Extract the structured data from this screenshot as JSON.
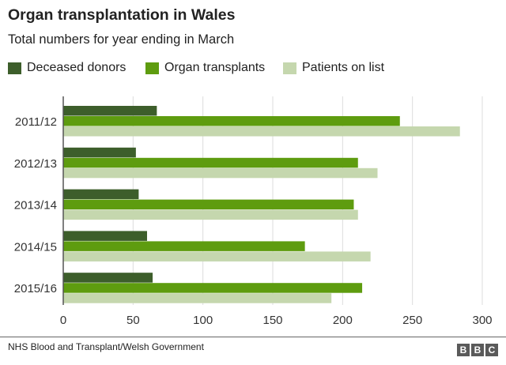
{
  "chart_data": {
    "type": "bar",
    "orientation": "horizontal",
    "title": "Organ transplantation in Wales",
    "subtitle": "Total numbers for year ending in March",
    "categories": [
      "2011/12",
      "2012/13",
      "2013/14",
      "2014/15",
      "2015/16"
    ],
    "series": [
      {
        "name": "Deceased donors",
        "color": "#3d5e2b",
        "values": [
          67,
          52,
          54,
          60,
          64
        ]
      },
      {
        "name": "Organ transplants",
        "color": "#5e9c0f",
        "values": [
          241,
          211,
          208,
          173,
          214
        ]
      },
      {
        "name": "Patients on list",
        "color": "#c5d7ae",
        "values": [
          284,
          225,
          211,
          220,
          192
        ]
      }
    ],
    "xlim": [
      0,
      300
    ],
    "xticks": [
      "0",
      "50",
      "100",
      "150",
      "200",
      "250",
      "300"
    ],
    "grid": true,
    "legend_position": "top",
    "xlabel": "",
    "ylabel": ""
  },
  "footer": {
    "source": "NHS Blood and Transplant/Welsh Government",
    "logo_letters": [
      "B",
      "B",
      "C"
    ]
  }
}
